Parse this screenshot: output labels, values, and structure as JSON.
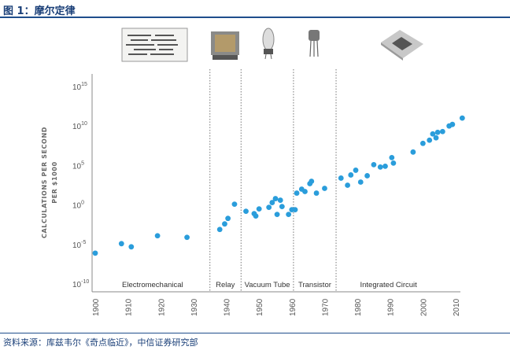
{
  "figure": {
    "title": "图 1：摩尔定律",
    "source": "资料来源：库兹韦尔《奇点临近》，中信证券研究部"
  },
  "chart_data": {
    "type": "scatter",
    "title": "",
    "xlabel": "",
    "ylabel_lines": [
      "CALCULATIONS PER SECOND",
      "PER $1000"
    ],
    "y_scale": "log10",
    "ylim_exponent": [
      -10,
      15
    ],
    "xlim": [
      1900,
      2010
    ],
    "x_ticks": [
      "1900",
      "1910",
      "1920",
      "1930",
      "1940",
      "1950",
      "1960",
      "1970",
      "1980",
      "1990",
      "2000",
      "2010"
    ],
    "y_tick_exponents": [
      "15",
      "10",
      "5",
      "0",
      "-5",
      "-10"
    ],
    "y_tick_base": "10",
    "grid": false,
    "point_color": "#2a9ddb",
    "divider_years": [
      1935,
      1944.5,
      1960.5,
      1973.5
    ],
    "eras": [
      {
        "label": "Electromechanical",
        "center": 1917.5
      },
      {
        "label": "Relay",
        "center": 1939.7
      },
      {
        "label": "Vacuum Tube",
        "center": 1952.5
      },
      {
        "label": "Transistor",
        "center": 1967
      },
      {
        "label": "Integrated Circuit",
        "center": 1989.5
      }
    ],
    "points": [
      {
        "x": 1900,
        "y": -6
      },
      {
        "x": 1908,
        "y": -4.8
      },
      {
        "x": 1911,
        "y": -5.2
      },
      {
        "x": 1919,
        "y": -3.8
      },
      {
        "x": 1928,
        "y": -4
      },
      {
        "x": 1938,
        "y": -3
      },
      {
        "x": 1939.5,
        "y": -2.3
      },
      {
        "x": 1940.5,
        "y": -1.6
      },
      {
        "x": 1942.5,
        "y": 0.2
      },
      {
        "x": 1946,
        "y": -0.7
      },
      {
        "x": 1948.5,
        "y": -1
      },
      {
        "x": 1949,
        "y": -1.3
      },
      {
        "x": 1950,
        "y": -0.4
      },
      {
        "x": 1953,
        "y": -0.2
      },
      {
        "x": 1954,
        "y": 0.4
      },
      {
        "x": 1955,
        "y": 0.9
      },
      {
        "x": 1955.5,
        "y": -1.1
      },
      {
        "x": 1956.5,
        "y": 0.7
      },
      {
        "x": 1957,
        "y": -0.1
      },
      {
        "x": 1959,
        "y": -1.1
      },
      {
        "x": 1960,
        "y": -0.5
      },
      {
        "x": 1961,
        "y": -0.5
      },
      {
        "x": 1961.5,
        "y": 1.6
      },
      {
        "x": 1963,
        "y": 2.1
      },
      {
        "x": 1964,
        "y": 1.8
      },
      {
        "x": 1965.5,
        "y": 2.8
      },
      {
        "x": 1966,
        "y": 3.1
      },
      {
        "x": 1967.5,
        "y": 1.6
      },
      {
        "x": 1970,
        "y": 2.2
      },
      {
        "x": 1975,
        "y": 3.5
      },
      {
        "x": 1977,
        "y": 2.6
      },
      {
        "x": 1978,
        "y": 3.9
      },
      {
        "x": 1979.5,
        "y": 4.5
      },
      {
        "x": 1981,
        "y": 3
      },
      {
        "x": 1983,
        "y": 3.8
      },
      {
        "x": 1985,
        "y": 5.2
      },
      {
        "x": 1987,
        "y": 4.9
      },
      {
        "x": 1988.5,
        "y": 5
      },
      {
        "x": 1990.5,
        "y": 6.1
      },
      {
        "x": 1991,
        "y": 5.4
      },
      {
        "x": 1997,
        "y": 6.8
      },
      {
        "x": 2000,
        "y": 7.9
      },
      {
        "x": 2002,
        "y": 8.3
      },
      {
        "x": 2003,
        "y": 9.1
      },
      {
        "x": 2004,
        "y": 8.6
      },
      {
        "x": 2004.5,
        "y": 9.3
      },
      {
        "x": 2006,
        "y": 9.4
      },
      {
        "x": 2008,
        "y": 10.1
      },
      {
        "x": 2009,
        "y": 10.3
      },
      {
        "x": 2012,
        "y": 11.1
      }
    ]
  }
}
